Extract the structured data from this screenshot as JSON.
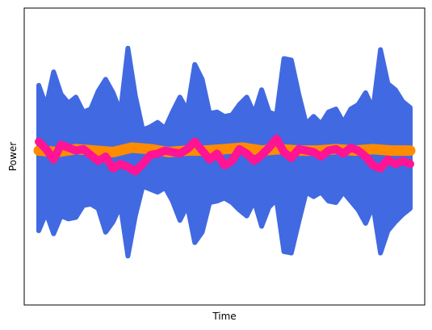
{
  "chart_data": {
    "type": "line",
    "title": "",
    "xlabel": "Time",
    "ylabel": "Power",
    "xlim": [
      0,
      1
    ],
    "ylim": [
      -1.0,
      1.0
    ],
    "xticks": [],
    "yticks": [],
    "grid": false,
    "legend": "none",
    "colors": {
      "envelope": "#4169E1",
      "mean": "#FF8C00",
      "smoothed": "#FF1493"
    },
    "series": [
      {
        "type": "band",
        "color": "#4169E1",
        "x": [
          0.0,
          0.02,
          0.04,
          0.06,
          0.08,
          0.1,
          0.12,
          0.14,
          0.16,
          0.18,
          0.2,
          0.22,
          0.24,
          0.26,
          0.28,
          0.3,
          0.32,
          0.34,
          0.36,
          0.38,
          0.4,
          0.42,
          0.44,
          0.46,
          0.48,
          0.5,
          0.52,
          0.54,
          0.56,
          0.58,
          0.6,
          0.62,
          0.64,
          0.66,
          0.68,
          0.7,
          0.72,
          0.74,
          0.76,
          0.78,
          0.8,
          0.82,
          0.84,
          0.86,
          0.88,
          0.9,
          0.92,
          0.94,
          0.96,
          0.98,
          1.0
        ],
        "upper": [
          0.48,
          0.34,
          0.57,
          0.42,
          0.36,
          0.4,
          0.3,
          0.32,
          0.44,
          0.52,
          0.43,
          0.3,
          0.73,
          0.41,
          0.18,
          0.2,
          0.23,
          0.19,
          0.3,
          0.4,
          0.31,
          0.62,
          0.52,
          0.29,
          0.3,
          0.27,
          0.28,
          0.35,
          0.4,
          0.29,
          0.45,
          0.3,
          0.28,
          0.66,
          0.65,
          0.42,
          0.22,
          0.27,
          0.22,
          0.3,
          0.32,
          0.23,
          0.32,
          0.35,
          0.43,
          0.32,
          0.72,
          0.49,
          0.45,
          0.37,
          0.33
        ],
        "lower": [
          -0.5,
          -0.38,
          -0.52,
          -0.4,
          -0.42,
          -0.41,
          -0.33,
          -0.32,
          -0.35,
          -0.51,
          -0.44,
          -0.33,
          -0.67,
          -0.4,
          -0.2,
          -0.22,
          -0.24,
          -0.21,
          -0.3,
          -0.43,
          -0.33,
          -0.58,
          -0.51,
          -0.31,
          -0.3,
          -0.28,
          -0.31,
          -0.36,
          -0.4,
          -0.3,
          -0.47,
          -0.34,
          -0.29,
          -0.64,
          -0.65,
          -0.44,
          -0.24,
          -0.27,
          -0.24,
          -0.3,
          -0.31,
          -0.24,
          -0.3,
          -0.36,
          -0.45,
          -0.33,
          -0.65,
          -0.5,
          -0.44,
          -0.39,
          -0.35
        ]
      },
      {
        "type": "line",
        "color": "#FF8C00",
        "x": [
          0.0,
          0.05,
          0.1,
          0.15,
          0.2,
          0.25,
          0.3,
          0.35,
          0.4,
          0.45,
          0.5,
          0.55,
          0.6,
          0.65,
          0.7,
          0.75,
          0.8,
          0.85,
          0.9,
          0.95,
          1.0
        ],
        "values": [
          0.04,
          0.03,
          0.05,
          0.04,
          0.03,
          0.06,
          0.05,
          0.03,
          0.04,
          0.04,
          0.05,
          0.06,
          0.04,
          0.05,
          0.04,
          0.04,
          0.05,
          0.04,
          0.05,
          0.04,
          0.04
        ]
      },
      {
        "type": "line",
        "color": "#FF1493",
        "x": [
          0.0,
          0.02,
          0.04,
          0.06,
          0.08,
          0.1,
          0.12,
          0.14,
          0.16,
          0.18,
          0.2,
          0.22,
          0.24,
          0.26,
          0.28,
          0.3,
          0.32,
          0.34,
          0.36,
          0.38,
          0.4,
          0.42,
          0.44,
          0.46,
          0.48,
          0.5,
          0.52,
          0.54,
          0.56,
          0.58,
          0.6,
          0.62,
          0.64,
          0.66,
          0.68,
          0.7,
          0.72,
          0.74,
          0.76,
          0.78,
          0.8,
          0.82,
          0.84,
          0.86,
          0.88,
          0.9,
          0.92,
          0.94,
          0.96,
          0.98,
          1.0
        ],
        "values": [
          0.1,
          0.05,
          -0.02,
          0.08,
          0.06,
          0.04,
          0.05,
          0.01,
          -0.03,
          0.0,
          -0.08,
          -0.05,
          -0.07,
          -0.1,
          -0.05,
          0.01,
          0.02,
          0.04,
          0.03,
          0.02,
          0.05,
          0.1,
          0.04,
          -0.02,
          0.02,
          -0.06,
          -0.03,
          0.05,
          0.02,
          -0.03,
          0.01,
          0.06,
          0.12,
          0.03,
          -0.01,
          0.05,
          0.04,
          0.03,
          0.0,
          0.04,
          0.05,
          0.02,
          0.06,
          0.04,
          0.0,
          -0.06,
          -0.08,
          -0.02,
          -0.05,
          -0.03,
          -0.05
        ]
      }
    ]
  }
}
